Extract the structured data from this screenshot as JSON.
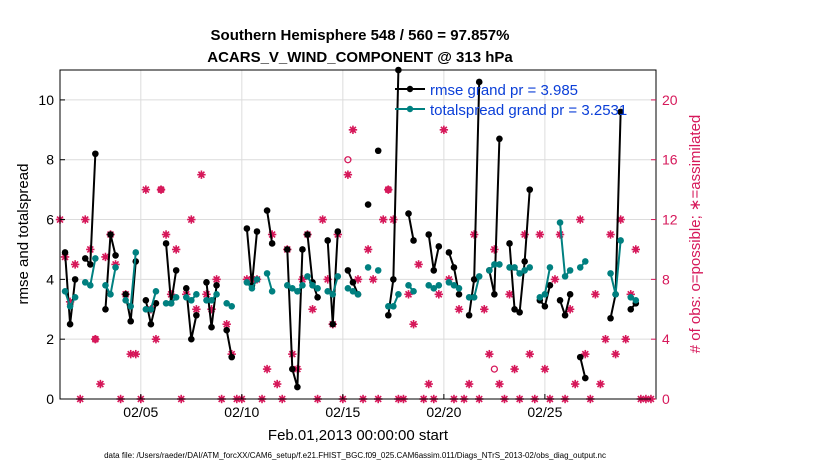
{
  "chart_data": {
    "type": "line",
    "title": "Southern Hemisphere 548 / 560 = 97.857%",
    "subtitle": "ACARS_V_WIND_COMPONENT @ 313 hPa",
    "xlabel": "Feb.01,2013 00:00:00 start",
    "ylabel": "rmse and totalspread",
    "y2label": "# of obs: o=possible; ∗=assimilated",
    "xlim": [
      1,
      30.5
    ],
    "ylim": [
      0,
      11
    ],
    "y2lim": [
      0,
      22
    ],
    "xticks": [
      5,
      10,
      15,
      20,
      25
    ],
    "xticklabels": [
      "02/05",
      "02/10",
      "02/15",
      "02/20",
      "02/25"
    ],
    "yticks": [
      0,
      2,
      4,
      6,
      8,
      10
    ],
    "y2ticks": [
      0,
      4,
      8,
      12,
      16,
      20
    ],
    "grid": true,
    "legend_position": "top-right",
    "colors": {
      "rmse": "#000000",
      "spread": "#008080",
      "obs": "#d6185a",
      "legend_text": "#0b3fd8"
    },
    "series": [
      {
        "name": "rmse grand pr = 3.985",
        "color": "#000000",
        "segments": [
          [
            [
              1.25,
              4.9
            ],
            [
              1.5,
              2.5
            ],
            [
              1.75,
              4.0
            ]
          ],
          [
            [
              2.25,
              4.7
            ],
            [
              2.5,
              4.5
            ],
            [
              2.75,
              8.2
            ]
          ],
          [
            [
              3.25,
              3.0
            ],
            [
              3.5,
              5.5
            ],
            [
              3.75,
              4.8
            ]
          ],
          [
            [
              4.25,
              3.5
            ],
            [
              4.5,
              2.6
            ],
            [
              4.75,
              4.6
            ]
          ],
          [
            [
              5.25,
              3.3
            ],
            [
              5.5,
              2.5
            ],
            [
              5.75,
              3.2
            ]
          ],
          [
            [
              6.25,
              5.2
            ],
            [
              6.5,
              3.2
            ],
            [
              6.75,
              4.3
            ]
          ],
          [
            [
              7.25,
              3.7
            ],
            [
              7.5,
              2.0
            ],
            [
              7.75,
              2.8
            ]
          ],
          [
            [
              8.25,
              3.9
            ],
            [
              8.5,
              2.4
            ],
            [
              8.75,
              3.8
            ]
          ],
          [
            [
              9.25,
              2.3
            ],
            [
              9.5,
              1.4
            ]
          ],
          [
            [
              10.25,
              5.7
            ],
            [
              10.5,
              3.8
            ],
            [
              10.75,
              5.6
            ]
          ],
          [
            [
              11.25,
              6.3
            ],
            [
              11.5,
              5.2
            ]
          ],
          [
            [
              12.25,
              5.0
            ],
            [
              12.5,
              1.0
            ],
            [
              12.75,
              0.4
            ],
            [
              13.0,
              5.0
            ]
          ],
          [
            [
              13.25,
              5.5
            ],
            [
              13.5,
              3.9
            ],
            [
              13.75,
              3.4
            ]
          ],
          [
            [
              14.25,
              5.3
            ],
            [
              14.5,
              2.5
            ],
            [
              14.75,
              5.6
            ]
          ],
          [
            [
              15.25,
              4.3
            ],
            [
              15.5,
              3.9
            ],
            [
              15.75,
              3.5
            ]
          ],
          [
            [
              16.25,
              6.5
            ]
          ],
          [
            [
              16.75,
              8.3
            ]
          ],
          [
            [
              17.25,
              2.8
            ],
            [
              17.5,
              4.0
            ],
            [
              17.75,
              11.0
            ]
          ],
          [
            [
              18.25,
              6.2
            ],
            [
              18.5,
              5.3
            ]
          ],
          [
            [
              19.25,
              5.5
            ],
            [
              19.5,
              4.3
            ],
            [
              19.75,
              5.1
            ]
          ],
          [
            [
              20.25,
              4.9
            ],
            [
              20.5,
              4.4
            ],
            [
              20.75,
              3.5
            ]
          ],
          [
            [
              21.25,
              2.8
            ],
            [
              21.5,
              4.0
            ],
            [
              21.75,
              10.6
            ]
          ],
          [
            [
              22.25,
              4.3
            ],
            [
              22.5,
              3.5
            ],
            [
              22.75,
              8.7
            ]
          ],
          [
            [
              23.25,
              5.2
            ],
            [
              23.5,
              3.0
            ],
            [
              23.75,
              2.9
            ],
            [
              24.0,
              4.6
            ],
            [
              24.25,
              7.0
            ]
          ],
          [
            [
              24.75,
              3.3
            ],
            [
              25.0,
              3.1
            ],
            [
              25.25,
              3.8
            ]
          ],
          [
            [
              25.75,
              3.3
            ],
            [
              26.0,
              2.8
            ],
            [
              26.25,
              3.5
            ]
          ],
          [
            [
              26.75,
              1.4
            ],
            [
              27.0,
              0.7
            ]
          ],
          [
            [
              28.25,
              2.7
            ],
            [
              28.5,
              3.5
            ],
            [
              28.75,
              9.6
            ]
          ],
          [
            [
              29.25,
              3.0
            ],
            [
              29.5,
              3.2
            ]
          ]
        ]
      },
      {
        "name": "totalspread grand pr = 3.2531",
        "color": "#008080",
        "segments": [
          [
            [
              1.25,
              3.6
            ],
            [
              1.5,
              3.1
            ],
            [
              1.75,
              3.4
            ]
          ],
          [
            [
              2.25,
              3.9
            ],
            [
              2.5,
              3.8
            ],
            [
              2.75,
              4.7
            ]
          ],
          [
            [
              3.25,
              3.8
            ],
            [
              3.5,
              3.5
            ],
            [
              3.75,
              4.4
            ]
          ],
          [
            [
              4.25,
              3.3
            ],
            [
              4.5,
              3.1
            ],
            [
              4.75,
              4.9
            ]
          ],
          [
            [
              5.25,
              3.0
            ],
            [
              5.5,
              3.0
            ],
            [
              5.75,
              3.6
            ]
          ],
          [
            [
              6.25,
              3.2
            ],
            [
              6.5,
              3.2
            ],
            [
              6.75,
              3.4
            ]
          ],
          [
            [
              7.25,
              3.4
            ],
            [
              7.5,
              3.3
            ],
            [
              7.75,
              3.5
            ]
          ],
          [
            [
              8.25,
              3.3
            ],
            [
              8.5,
              3.3
            ],
            [
              8.75,
              3.5
            ]
          ],
          [
            [
              9.25,
              3.2
            ],
            [
              9.5,
              3.1
            ]
          ],
          [
            [
              10.25,
              3.9
            ],
            [
              10.5,
              3.7
            ],
            [
              10.75,
              4.0
            ]
          ],
          [
            [
              11.25,
              4.2
            ],
            [
              11.5,
              3.6
            ]
          ],
          [
            [
              12.25,
              3.8
            ],
            [
              12.5,
              3.7
            ],
            [
              12.75,
              3.6
            ],
            [
              13.0,
              3.8
            ]
          ],
          [
            [
              13.25,
              4.1
            ],
            [
              13.5,
              3.8
            ],
            [
              13.75,
              3.7
            ]
          ],
          [
            [
              14.25,
              3.6
            ],
            [
              14.5,
              3.5
            ],
            [
              14.75,
              4.1
            ]
          ],
          [
            [
              15.25,
              3.7
            ],
            [
              15.5,
              3.6
            ],
            [
              15.75,
              3.5
            ]
          ],
          [
            [
              16.25,
              4.4
            ]
          ],
          [
            [
              16.75,
              4.3
            ]
          ],
          [
            [
              17.25,
              3.1
            ],
            [
              17.5,
              3.1
            ],
            [
              17.75,
              3.5
            ]
          ],
          [
            [
              18.25,
              3.8
            ],
            [
              18.5,
              3.6
            ]
          ],
          [
            [
              19.25,
              3.8
            ],
            [
              19.5,
              3.7
            ],
            [
              19.75,
              3.8
            ]
          ],
          [
            [
              20.25,
              3.9
            ],
            [
              20.5,
              3.8
            ],
            [
              20.75,
              3.7
            ]
          ],
          [
            [
              21.25,
              3.4
            ],
            [
              21.5,
              3.4
            ],
            [
              21.75,
              4.1
            ]
          ],
          [
            [
              22.25,
              4.3
            ],
            [
              22.5,
              4.5
            ],
            [
              22.75,
              4.5
            ]
          ],
          [
            [
              23.25,
              4.4
            ],
            [
              23.5,
              4.4
            ],
            [
              23.75,
              4.2
            ],
            [
              24.0,
              4.3
            ],
            [
              24.25,
              4.4
            ]
          ],
          [
            [
              24.75,
              3.4
            ],
            [
              25.0,
              3.5
            ],
            [
              25.25,
              4.4
            ]
          ],
          [
            [
              25.75,
              5.9
            ],
            [
              26.0,
              4.1
            ],
            [
              26.25,
              4.3
            ]
          ],
          [
            [
              26.75,
              4.4
            ],
            [
              27.0,
              4.6
            ]
          ],
          [
            [
              28.25,
              4.2
            ],
            [
              28.5,
              3.5
            ],
            [
              28.75,
              5.3
            ]
          ],
          [
            [
              29.25,
              3.4
            ],
            [
              29.5,
              3.3
            ]
          ]
        ]
      }
    ],
    "obs_possible": [
      [
        1.0,
        12
      ],
      [
        1.25,
        9.5
      ],
      [
        1.5,
        6.5
      ],
      [
        1.75,
        9
      ],
      [
        2.0,
        0
      ],
      [
        2.25,
        12
      ],
      [
        2.5,
        10
      ],
      [
        2.75,
        4
      ],
      [
        3.0,
        1
      ],
      [
        3.25,
        9.5
      ],
      [
        3.5,
        11
      ],
      [
        3.75,
        9
      ],
      [
        4.0,
        0
      ],
      [
        4.25,
        7
      ],
      [
        4.5,
        3
      ],
      [
        4.75,
        3
      ],
      [
        5.0,
        0
      ],
      [
        5.25,
        14
      ],
      [
        5.5,
        6
      ],
      [
        5.75,
        4
      ],
      [
        6.0,
        14
      ],
      [
        6.25,
        11
      ],
      [
        6.5,
        7
      ],
      [
        6.75,
        10
      ],
      [
        7.0,
        0
      ],
      [
        7.25,
        7
      ],
      [
        7.5,
        12
      ],
      [
        7.75,
        6
      ],
      [
        8.0,
        15
      ],
      [
        8.25,
        7
      ],
      [
        8.5,
        6
      ],
      [
        8.75,
        8
      ],
      [
        9.0,
        0
      ],
      [
        9.25,
        5
      ],
      [
        9.5,
        3
      ],
      [
        9.75,
        0
      ],
      [
        10.0,
        0
      ],
      [
        10.25,
        8
      ],
      [
        10.5,
        8
      ],
      [
        10.75,
        8
      ],
      [
        11.0,
        0
      ],
      [
        11.25,
        2
      ],
      [
        11.5,
        11
      ],
      [
        11.75,
        1
      ],
      [
        12.0,
        0
      ],
      [
        12.25,
        10
      ],
      [
        12.5,
        3
      ],
      [
        12.75,
        2
      ],
      [
        13.0,
        8
      ],
      [
        13.25,
        11
      ],
      [
        13.5,
        6
      ],
      [
        13.75,
        0
      ],
      [
        14.0,
        12
      ],
      [
        14.25,
        8
      ],
      [
        14.5,
        5
      ],
      [
        14.75,
        11
      ],
      [
        15.0,
        0
      ],
      [
        15.25,
        15
      ],
      [
        15.5,
        18
      ],
      [
        15.75,
        8
      ],
      [
        16.0,
        0
      ],
      [
        16.25,
        10
      ],
      [
        16.5,
        8
      ],
      [
        16.75,
        0
      ],
      [
        17.0,
        12
      ],
      [
        17.25,
        14
      ],
      [
        17.5,
        12
      ],
      [
        17.75,
        0
      ],
      [
        18.0,
        0
      ],
      [
        18.25,
        7
      ],
      [
        18.5,
        5
      ],
      [
        18.75,
        9
      ],
      [
        19.0,
        0
      ],
      [
        19.25,
        1
      ],
      [
        19.5,
        0
      ],
      [
        19.75,
        7
      ],
      [
        20.0,
        18
      ],
      [
        20.25,
        8
      ],
      [
        20.5,
        0
      ],
      [
        20.75,
        6
      ],
      [
        21.0,
        0
      ],
      [
        21.25,
        1
      ],
      [
        21.5,
        11
      ],
      [
        21.75,
        0
      ],
      [
        22.0,
        6
      ],
      [
        22.25,
        3
      ],
      [
        22.5,
        10
      ],
      [
        22.75,
        1
      ],
      [
        23.0,
        0
      ],
      [
        23.25,
        7
      ],
      [
        23.5,
        2
      ],
      [
        23.75,
        0
      ],
      [
        24.0,
        11
      ],
      [
        24.25,
        3
      ],
      [
        24.5,
        0
      ],
      [
        24.75,
        11
      ],
      [
        25.0,
        2
      ],
      [
        25.25,
        0
      ],
      [
        25.5,
        8
      ],
      [
        25.75,
        11
      ],
      [
        26.0,
        0
      ],
      [
        26.25,
        6
      ],
      [
        26.5,
        1
      ],
      [
        26.75,
        12
      ],
      [
        27.0,
        3
      ],
      [
        27.25,
        0
      ],
      [
        27.5,
        7
      ],
      [
        27.75,
        1
      ],
      [
        28.0,
        4
      ],
      [
        28.25,
        11
      ],
      [
        28.5,
        3
      ],
      [
        28.75,
        12
      ],
      [
        29.0,
        4
      ],
      [
        29.25,
        7
      ],
      [
        29.5,
        10
      ],
      [
        29.75,
        0
      ],
      [
        30.0,
        0
      ],
      [
        30.25,
        0
      ]
    ],
    "obs_possible_extra": [
      [
        2.75,
        4
      ],
      [
        6.0,
        14
      ],
      [
        15.25,
        16
      ],
      [
        17.25,
        14
      ],
      [
        22.5,
        2
      ]
    ]
  },
  "legend_marker": "—●—",
  "footer": "data file: /Users/raeder/DAI/ATM_forcXX/CAM6_setup/f.e21.FHIST_BGC.f09_025.CAM6assim.011/Diags_NTrS_2013-02/obs_diag_output.nc"
}
